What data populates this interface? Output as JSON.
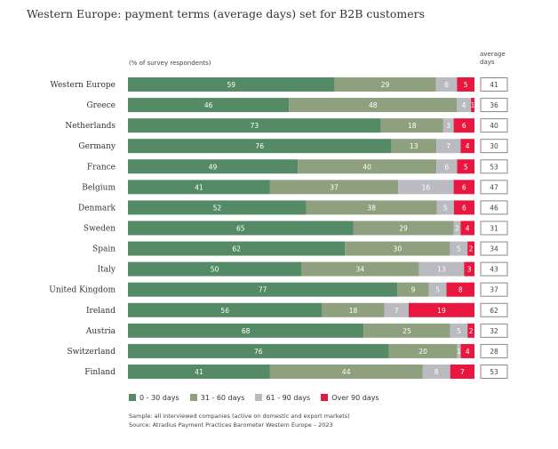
{
  "chart_data": {
    "type": "bar",
    "orientation": "horizontal",
    "stacked": true,
    "title": "Western Europe: payment terms (average days) set for B2B customers",
    "subtitle": "(% of survey respondents)",
    "avg_header": "average days",
    "categories": [
      "Western Europe",
      "Greece",
      "Netherlands",
      "Germany",
      "France",
      "Belgium",
      "Denmark",
      "Sweden",
      "Spain",
      "Italy",
      "United Kingdom",
      "Ireland",
      "Austria",
      "Switzerland",
      "Finland"
    ],
    "series": [
      {
        "name": "0 - 30 days",
        "color": "#558a66",
        "values": [
          59,
          46,
          73,
          76,
          49,
          41,
          52,
          65,
          62,
          50,
          77,
          56,
          68,
          76,
          41
        ]
      },
      {
        "name": "31 - 60 days",
        "color": "#8fa07f",
        "values": [
          29,
          48,
          18,
          13,
          40,
          37,
          38,
          29,
          30,
          34,
          9,
          18,
          25,
          20,
          44
        ]
      },
      {
        "name": "61 - 90 days",
        "color": "#babbc0",
        "values": [
          6,
          4,
          3,
          7,
          6,
          16,
          5,
          2,
          5,
          13,
          5,
          7,
          5,
          1,
          8
        ]
      },
      {
        "name": "Over 90 days",
        "color": "#e8173f",
        "values": [
          5,
          1,
          6,
          4,
          5,
          6,
          6,
          4,
          2,
          3,
          8,
          19,
          2,
          4,
          7
        ]
      }
    ],
    "average_days": [
      41,
      36,
      40,
      30,
      53,
      47,
      46,
      31,
      34,
      43,
      37,
      62,
      32,
      28,
      53
    ],
    "legend_position": "bottom",
    "grid": false
  },
  "notes": [
    "Sample: all interviewed companies (active on domestic and export markets)",
    "Source: Atradius Payment Practices Barometer Western Europe – 2023"
  ]
}
